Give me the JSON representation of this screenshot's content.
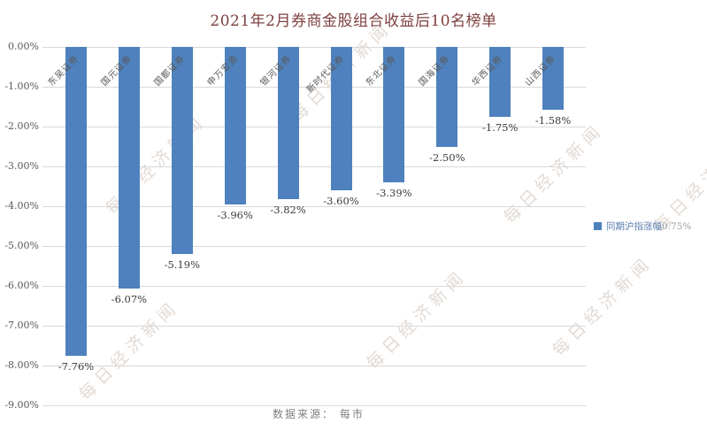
{
  "title": "2021年2月券商金股组合收益后10名榜单",
  "source_note": "数据来源： 每市",
  "watermark_text": "每日经济新闻",
  "legend": {
    "label": "同期沪指涨幅",
    "value": "0.75%",
    "marker_color": "#4e81bd"
  },
  "colors": {
    "bar": "#4e81bd",
    "title": "#7f4040",
    "axis_text": "#595959",
    "value_text": "#3a3a3a",
    "gridline": "#d9d9d9"
  },
  "chart_data": {
    "type": "bar",
    "title": "2021年2月券商金股组合收益后10名榜单",
    "categories": [
      "东吴证券",
      "国元证券",
      "国都证券",
      "申万宏源",
      "银河证券",
      "新时代证券",
      "东北证券",
      "国海证券",
      "华西证券",
      "山西证券"
    ],
    "values": [
      -7.76,
      -6.07,
      -5.19,
      -3.96,
      -3.82,
      -3.6,
      -3.39,
      -2.5,
      -1.75,
      -1.58
    ],
    "value_labels": [
      "-7.76%",
      "-6.07%",
      "-5.19%",
      "-3.96%",
      "-3.82%",
      "-3.60%",
      "-3.39%",
      "-2.50%",
      "-1.75%",
      "-1.58%"
    ],
    "xlabel": "",
    "ylabel": "",
    "ylim": [
      -9,
      0
    ],
    "ytick_labels": [
      "0.00%",
      "-1.00%",
      "-2.00%",
      "-3.00%",
      "-4.00%",
      "-5.00%",
      "-6.00%",
      "-7.00%",
      "-8.00%",
      "-9.00%"
    ],
    "grid": true,
    "bar_color": "#4e81bd",
    "legend_entries": [
      "同期沪指涨幅0.75%"
    ],
    "legend_position": "right",
    "source": "数据来源： 每市"
  }
}
